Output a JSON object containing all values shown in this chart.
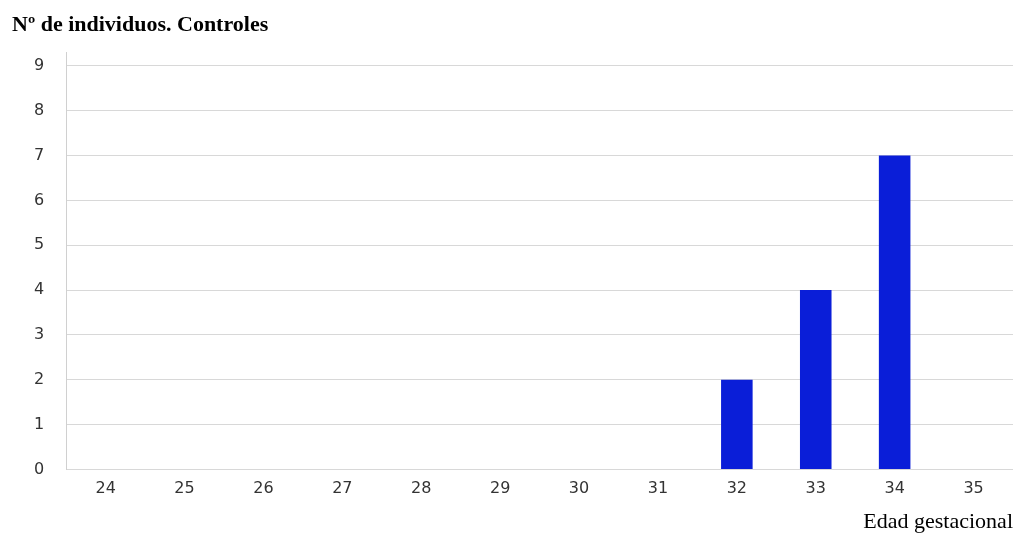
{
  "chart_data": {
    "type": "bar",
    "title": "Nº de individuos. Controles",
    "xlabel": "Edad gestacional",
    "categories": [
      "24",
      "25",
      "26",
      "27",
      "28",
      "29",
      "30",
      "31",
      "32",
      "33",
      "34",
      "35"
    ],
    "values": [
      0,
      0,
      0,
      0,
      0,
      0,
      0,
      0,
      2,
      4,
      7,
      0
    ],
    "color": "#0a1ed8",
    "ylim": [
      0,
      9.3
    ],
    "yticks": [
      0,
      1,
      2,
      3,
      4,
      5,
      6,
      7,
      8,
      9
    ],
    "grid": "y",
    "legend": false
  }
}
